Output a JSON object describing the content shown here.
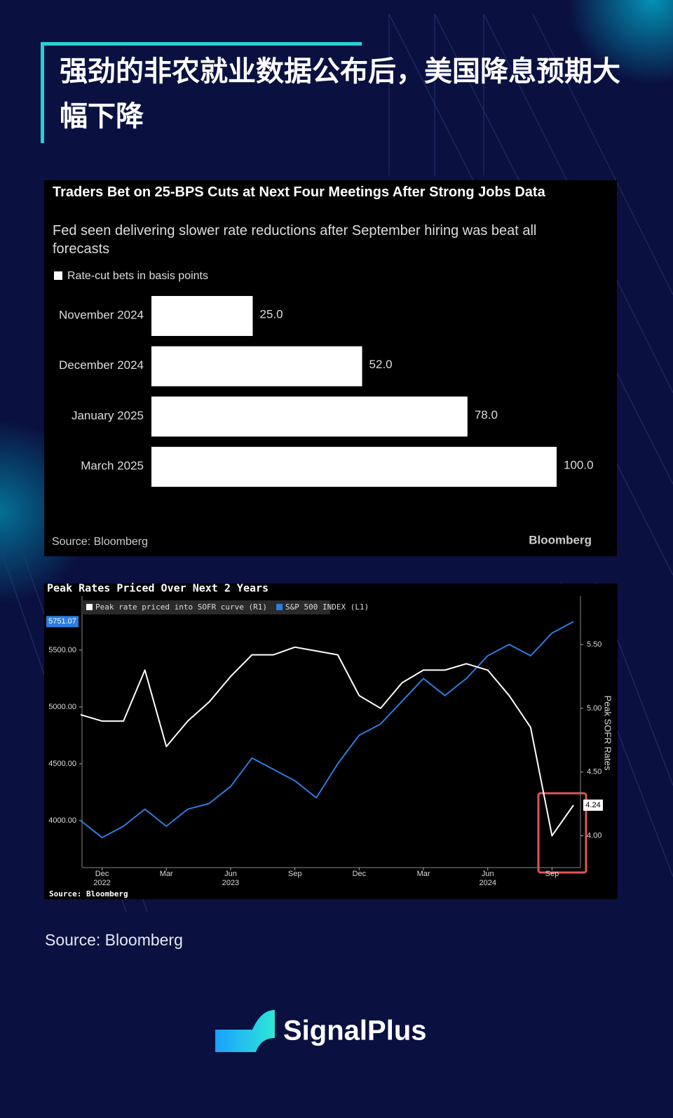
{
  "header": {
    "title": "强劲的非农就业数据公布后，美国降息预期大幅下降"
  },
  "chart_data": [
    {
      "type": "bar",
      "orientation": "horizontal",
      "title": "Traders Bet on 25-BPS Cuts at Next Four Meetings After Strong Jobs Data",
      "subtitle": "Fed seen delivering slower rate reductions after September hiring was beat all forecasts",
      "legend": "Rate-cut bets in basis points",
      "categories": [
        "November 2024",
        "December 2024",
        "January 2025",
        "March 2025"
      ],
      "values": [
        25,
        52,
        78,
        100
      ],
      "value_labels": [
        "25.0",
        "52.0",
        "78.0",
        "100.0"
      ],
      "color": "#ffffff",
      "xlim": [
        0,
        100
      ],
      "source": "Source: Bloomberg",
      "brand": "Bloomberg"
    },
    {
      "type": "line",
      "title": "Peak Rates Priced Over Next 2 Years",
      "x": [
        "2022-11",
        "2022-12",
        "2023-01",
        "2023-02",
        "2023-03",
        "2023-04",
        "2023-05",
        "2023-06",
        "2023-07",
        "2023-08",
        "2023-09",
        "2023-10",
        "2023-11",
        "2023-12",
        "2024-01",
        "2024-02",
        "2024-03",
        "2024-04",
        "2024-05",
        "2024-06",
        "2024-07",
        "2024-08",
        "2024-09",
        "2024-10"
      ],
      "xlim": [
        "2022-11",
        "2024-10"
      ],
      "xticks": [
        {
          "value": "2022-12",
          "label": "Dec"
        },
        {
          "value": "2023-03",
          "label": "Mar"
        },
        {
          "value": "2023-06",
          "label": "Jun"
        },
        {
          "value": "2023-09",
          "label": "Sep"
        },
        {
          "value": "2023-12",
          "label": "Dec"
        },
        {
          "value": "2024-03",
          "label": "Mar"
        },
        {
          "value": "2024-06",
          "label": "Jun"
        },
        {
          "value": "2024-09",
          "label": "Sep"
        }
      ],
      "xyears": [
        {
          "value": "2022-12",
          "label": "2022"
        },
        {
          "value": "2023-06",
          "label": "2023"
        },
        {
          "value": "2024-06",
          "label": "2024"
        }
      ],
      "series": [
        {
          "name": "Peak rate priced into SOFR curve (R1)",
          "color": "#ffffff",
          "axis": "y2",
          "values": [
            4.95,
            4.9,
            4.9,
            5.3,
            4.7,
            4.9,
            5.05,
            5.25,
            5.42,
            5.42,
            5.48,
            5.45,
            5.42,
            5.1,
            5.0,
            5.2,
            5.3,
            5.3,
            5.35,
            5.3,
            5.1,
            4.85,
            4.0,
            4.24
          ]
        },
        {
          "name": "S&P 500 INDEX (L1)",
          "color": "#2a7de1",
          "values": [
            4000,
            3850,
            3950,
            4100,
            3950,
            4100,
            4150,
            4300,
            4550,
            4450,
            4350,
            4200,
            4500,
            4750,
            4850,
            5050,
            5250,
            5100,
            5250,
            5450,
            5550,
            5450,
            5650,
            5751.07
          ]
        }
      ],
      "ylim": [
        3586,
        5975
      ],
      "yticks": [
        {
          "value": 4000,
          "label": "4000.00"
        },
        {
          "value": 4500,
          "label": "4500.00"
        },
        {
          "value": 5000,
          "label": "5000.00"
        },
        {
          "value": 5500,
          "label": "5500.00"
        }
      ],
      "y2lim": [
        3.75,
        5.88
      ],
      "y2ticks": [
        {
          "value": 4,
          "label": "4.00"
        },
        {
          "value": 4.5,
          "label": "4.50"
        },
        {
          "value": 5,
          "label": "5.00"
        },
        {
          "value": 5.5,
          "label": "5.50"
        }
      ],
      "y2label": "Peak SOFR Rates",
      "source": "Source:  Bloomberg"
    }
  ],
  "footer": {
    "source": "Source: Bloomberg",
    "brand": "SignalPlus"
  }
}
